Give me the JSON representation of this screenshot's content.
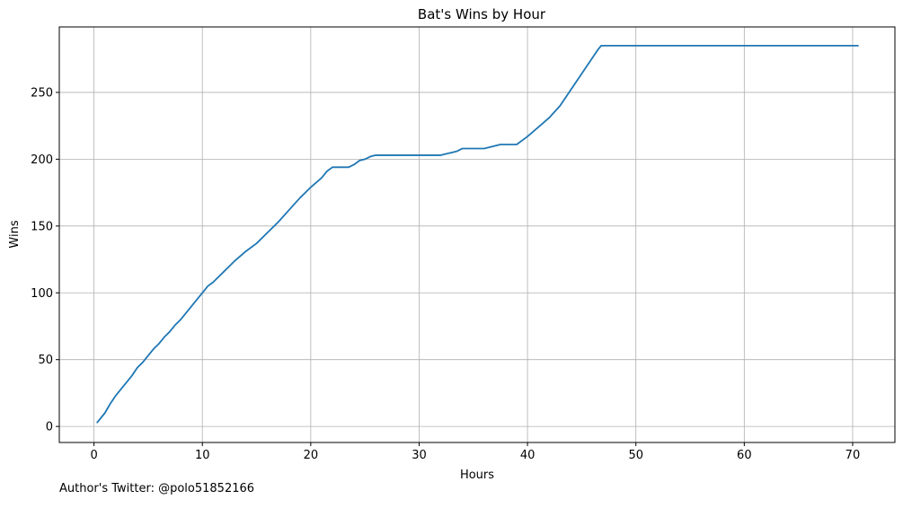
{
  "chart_data": {
    "type": "line",
    "title": "Bat's Wins by Hour",
    "xlabel": "Hours",
    "ylabel": "Wins",
    "xlim": [
      -3.2,
      73.9
    ],
    "ylim": [
      -12,
      299
    ],
    "xticks": [
      0,
      10,
      20,
      30,
      40,
      50,
      60,
      70
    ],
    "yticks": [
      0,
      50,
      100,
      150,
      200,
      250
    ],
    "grid": true,
    "line_color": "#1f77b4",
    "series": [
      {
        "x": [
          0.3,
          1.0,
          1.5,
          2.0,
          2.5,
          3.0,
          3.5,
          4.0,
          4.5,
          5.0,
          5.5,
          6.0,
          6.5,
          7.0,
          7.5,
          8.0,
          8.5,
          9.0,
          9.5,
          10.0,
          10.5,
          11.0,
          11.5,
          12.0,
          13.0,
          14.0,
          15.0,
          16.0,
          17.0,
          18.0,
          19.0,
          20.0,
          21.0,
          21.5,
          22.0,
          22.5,
          23.0,
          23.5,
          24.0,
          24.5,
          25.0,
          25.5,
          26.0,
          27.0,
          28.0,
          29.0,
          30.0,
          31.0,
          32.0,
          32.5,
          33.0,
          33.5,
          34.0,
          34.5,
          35.0,
          35.5,
          36.0,
          36.5,
          37.0,
          37.5,
          38.0,
          38.5,
          39.0,
          40.0,
          41.0,
          42.0,
          43.0,
          44.0,
          45.0,
          46.0,
          46.5,
          46.8,
          47.0,
          50.0,
          55.0,
          60.0,
          65.0,
          70.5
        ],
        "y": [
          3,
          10,
          17,
          23,
          28,
          33,
          38,
          44,
          48,
          53,
          58,
          62,
          67,
          71,
          76,
          80,
          85,
          90,
          95,
          100,
          105,
          108,
          112,
          116,
          124,
          131,
          137,
          145,
          153,
          162,
          171,
          179,
          186,
          191,
          194,
          194,
          194,
          194,
          196,
          199,
          200,
          202,
          203,
          203,
          203,
          203,
          203,
          203,
          203,
          204,
          205,
          206,
          208,
          208,
          208,
          208,
          208,
          209,
          210,
          211,
          211,
          211,
          211,
          217,
          224,
          231,
          240,
          252,
          264,
          276,
          282,
          285,
          285,
          285,
          285,
          285,
          285,
          285
        ]
      }
    ]
  },
  "footer": {
    "author_note": "Author's Twitter: @polo51852166"
  }
}
